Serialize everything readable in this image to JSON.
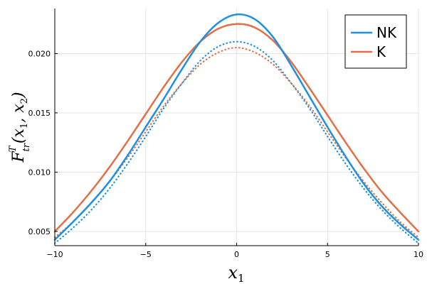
{
  "chart_data": {
    "type": "line",
    "title": "",
    "xlabel": "x_1",
    "ylabel": "F_{tr}^T(x_1, x_2)",
    "xlim": [
      -10,
      10
    ],
    "ylim": [
      0.0038,
      0.0238
    ],
    "x_ticks": [
      -10,
      -5,
      0,
      5,
      10
    ],
    "x_tick_labels": [
      "−10",
      "−5",
      "0",
      "5",
      "10"
    ],
    "y_ticks": [
      0.005,
      0.01,
      0.015,
      0.02
    ],
    "y_tick_labels": [
      "0.005",
      "0.010",
      "0.015",
      "0.020"
    ],
    "grid": true,
    "legend_position": "top-right",
    "x": [
      -10,
      -9,
      -8,
      -7,
      -6,
      -5,
      -4,
      -3,
      -2,
      -1,
      0,
      1,
      2,
      3,
      4,
      5,
      6,
      7,
      8,
      9,
      10
    ],
    "series": [
      {
        "name": "NK",
        "style": "solid",
        "color": "#1e90e5",
        "values": [
          0.0043,
          0.0058,
          0.0074,
          0.0092,
          0.0114,
          0.0138,
          0.0162,
          0.0187,
          0.021,
          0.0226,
          0.0233,
          0.0229,
          0.0214,
          0.019,
          0.0164,
          0.0138,
          0.0113,
          0.009,
          0.0071,
          0.0056,
          0.0043
        ]
      },
      {
        "name": "K",
        "style": "solid",
        "color": "#e26f46",
        "values": [
          0.005,
          0.0066,
          0.0084,
          0.0104,
          0.0126,
          0.0149,
          0.0172,
          0.0193,
          0.021,
          0.0221,
          0.0225,
          0.0222,
          0.0211,
          0.0193,
          0.0171,
          0.0148,
          0.0125,
          0.0103,
          0.0083,
          0.0066,
          0.005
        ]
      },
      {
        "name": "",
        "style": "dotted",
        "color": "#1e90e5",
        "values": [
          0.004,
          0.0053,
          0.0068,
          0.0086,
          0.0107,
          0.013,
          0.0154,
          0.0175,
          0.0194,
          0.0206,
          0.021,
          0.0206,
          0.0194,
          0.0175,
          0.0154,
          0.013,
          0.0107,
          0.0086,
          0.0068,
          0.0053,
          0.004
        ]
      },
      {
        "name": "",
        "style": "dotted",
        "color": "#e26f46",
        "values": [
          0.0045,
          0.0058,
          0.0074,
          0.0092,
          0.0112,
          0.0134,
          0.0156,
          0.0175,
          0.0191,
          0.0201,
          0.0205,
          0.0201,
          0.0191,
          0.0175,
          0.0156,
          0.0134,
          0.0112,
          0.0092,
          0.0074,
          0.0058,
          0.0045
        ]
      }
    ]
  }
}
